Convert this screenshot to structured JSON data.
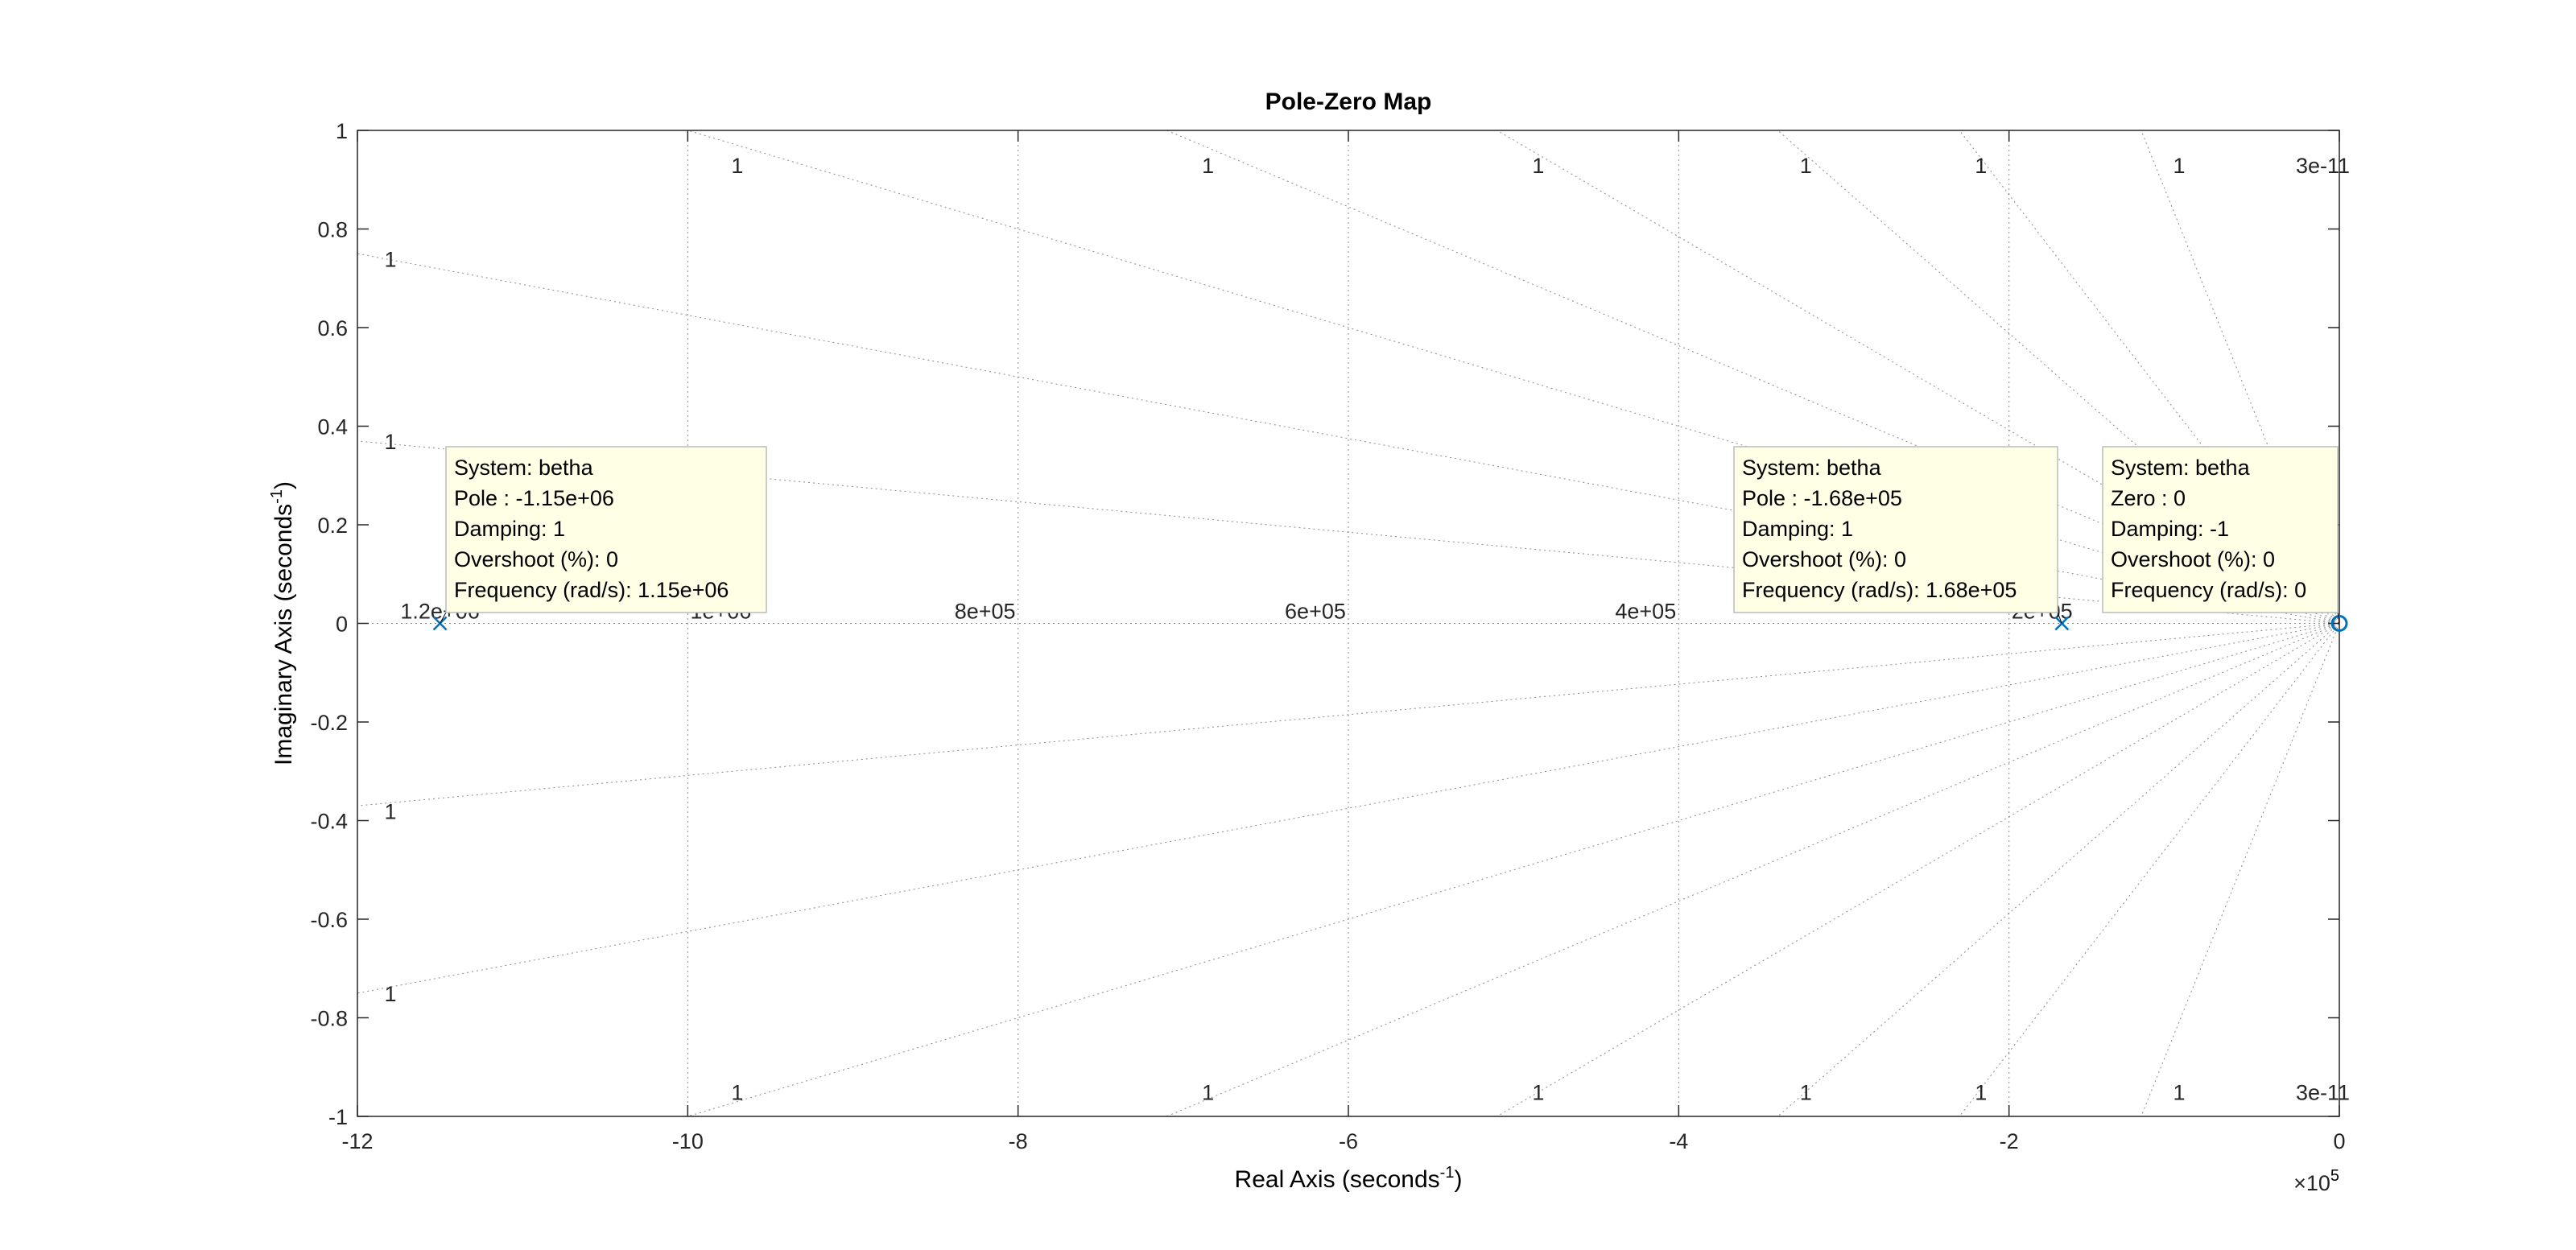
{
  "chart_data": {
    "type": "scatter",
    "title": "Pole-Zero Map",
    "xlabel": {
      "text": "Real Axis (seconds",
      "sup": "-1",
      "close": ")"
    },
    "ylabel": {
      "text": "Imaginary Axis (seconds",
      "sup": "-1",
      "close": ")"
    },
    "x_exponent_label": "×10",
    "x_exponent_power": "5",
    "x_scale": 100000,
    "xlim": [
      -12,
      0
    ],
    "ylim": [
      -1,
      1
    ],
    "xticks": [
      -12,
      -10,
      -8,
      -6,
      -4,
      -2,
      0
    ],
    "xtick_labels": [
      "-12",
      "-10",
      "-8",
      "-6",
      "-4",
      "-2",
      "0"
    ],
    "yticks": [
      -1,
      -0.8,
      -0.6,
      -0.4,
      -0.2,
      0,
      0.2,
      0.4,
      0.6,
      0.8,
      1
    ],
    "ytick_labels": [
      "-1",
      "-0.8",
      "-0.6",
      "-0.4",
      "-0.2",
      "0",
      "0.2",
      "0.4",
      "0.6",
      "0.8",
      "1"
    ],
    "grid": true,
    "grid_style": "dotted",
    "frequency_grid_x": [
      -10,
      -8,
      -6,
      -4,
      -2
    ],
    "frequency_labels": [
      {
        "x": -11.5,
        "text": "1.2e+06"
      },
      {
        "x": -9.8,
        "text": "1e+06"
      },
      {
        "x": -8.2,
        "text": "8e+05"
      },
      {
        "x": -6.2,
        "text": "6e+05"
      },
      {
        "x": -4.2,
        "text": "4e+05"
      },
      {
        "x": -1.8,
        "text": "2e+05"
      }
    ],
    "damping_ray_ends": [
      {
        "x": -12,
        "y": 0.75
      },
      {
        "x": -12,
        "y": 0.37
      },
      {
        "x": -12,
        "y": -0.37
      },
      {
        "x": -12,
        "y": -0.75
      },
      {
        "x": -10,
        "y": 1
      },
      {
        "x": -7.1,
        "y": 1
      },
      {
        "x": -5.1,
        "y": 1
      },
      {
        "x": -3.4,
        "y": 1
      },
      {
        "x": -2.3,
        "y": 1
      },
      {
        "x": -1.2,
        "y": 1
      },
      {
        "x": -10,
        "y": -1
      },
      {
        "x": -7.1,
        "y": -1
      },
      {
        "x": -5.1,
        "y": -1
      },
      {
        "x": -3.4,
        "y": -1
      },
      {
        "x": -2.3,
        "y": -1
      },
      {
        "x": -1.2,
        "y": -1
      }
    ],
    "damping_labels": [
      {
        "x": -11.8,
        "y": 0.74,
        "text": "1"
      },
      {
        "x": -11.8,
        "y": 0.37,
        "text": "1"
      },
      {
        "x": -11.8,
        "y": -0.38,
        "text": "1"
      },
      {
        "x": -11.8,
        "y": -0.75,
        "text": "1"
      },
      {
        "x": -9.7,
        "y": 0.93,
        "text": "1"
      },
      {
        "x": -6.85,
        "y": 0.93,
        "text": "1"
      },
      {
        "x": -4.85,
        "y": 0.93,
        "text": "1"
      },
      {
        "x": -3.23,
        "y": 0.93,
        "text": "1"
      },
      {
        "x": -2.17,
        "y": 0.93,
        "text": "1"
      },
      {
        "x": -0.97,
        "y": 0.93,
        "text": "1"
      },
      {
        "x": -0.1,
        "y": 0.93,
        "text": "3e-11"
      },
      {
        "x": -9.7,
        "y": -0.95,
        "text": "1"
      },
      {
        "x": -6.85,
        "y": -0.95,
        "text": "1"
      },
      {
        "x": -4.85,
        "y": -0.95,
        "text": "1"
      },
      {
        "x": -3.23,
        "y": -0.95,
        "text": "1"
      },
      {
        "x": -2.17,
        "y": -0.95,
        "text": "1"
      },
      {
        "x": -0.97,
        "y": -0.95,
        "text": "1"
      },
      {
        "x": -0.1,
        "y": -0.95,
        "text": "3e-11"
      }
    ],
    "poles": [
      {
        "x": -11.5,
        "y": 0
      },
      {
        "x": -1.68,
        "y": 0
      }
    ],
    "zeros": [
      {
        "x": 0,
        "y": 0
      }
    ],
    "marker_color": "#0072BD",
    "datatips": [
      {
        "anchor": "pole-1",
        "lines": [
          "System: betha",
          "Pole : -1.15e+06",
          "Damping: 1",
          "Overshoot (%): 0",
          "Frequency (rad/s): 1.15e+06"
        ]
      },
      {
        "anchor": "pole-2",
        "lines": [
          "System: betha",
          "Pole : -1.68e+05",
          "Damping: 1",
          "Overshoot (%): 0",
          "Frequency (rad/s): 1.68e+05"
        ]
      },
      {
        "anchor": "zero-1",
        "lines": [
          "System: betha",
          "Zero : 0",
          "Damping: -1",
          "Overshoot (%): 0",
          "Frequency (rad/s): 0"
        ]
      }
    ]
  }
}
